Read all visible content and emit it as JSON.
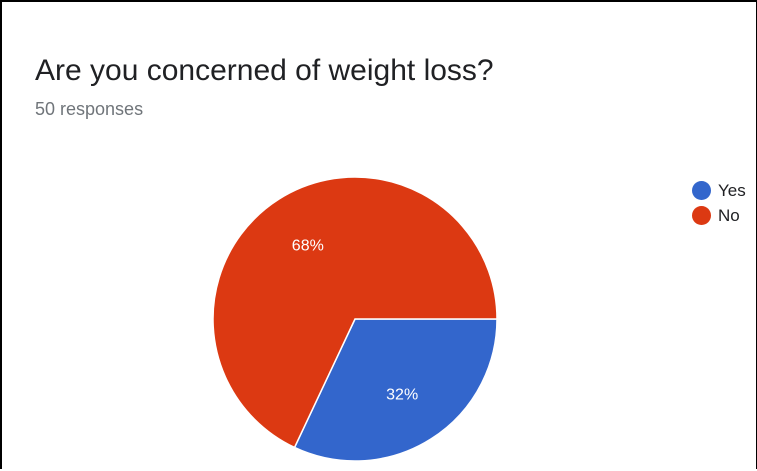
{
  "card": {
    "title": "Are you concerned of weight loss?",
    "subtitle": "50 responses"
  },
  "chart_data": {
    "type": "pie",
    "title": "Are you concerned of weight loss?",
    "subtitle": "50 responses",
    "labels": [
      "Yes",
      "No"
    ],
    "values": [
      32,
      68
    ],
    "unit": "%",
    "data_labels": [
      "32%",
      "68%"
    ],
    "colors": [
      "#3366cc",
      "#dc3912"
    ],
    "legend_position": "right",
    "start_angle_deg": 90,
    "direction": "clockwise"
  }
}
